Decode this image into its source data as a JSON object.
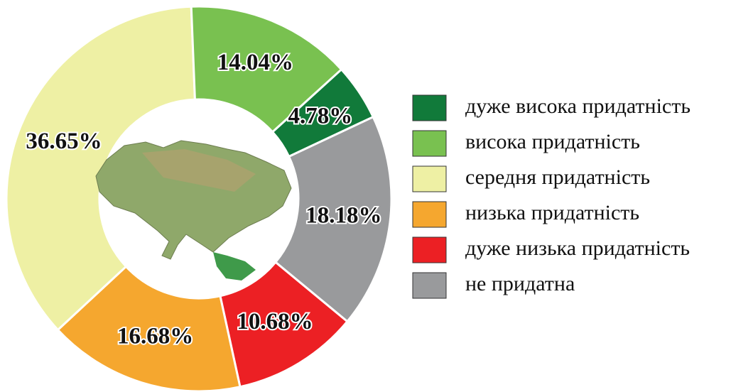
{
  "chart_data": {
    "type": "donut",
    "categories": [
      "дуже висока придатність",
      "висока придатність",
      "середня придатність",
      "низька придатність",
      "дуже низька придатність",
      "не придатна"
    ],
    "values": [
      4.78,
      14.04,
      36.65,
      16.68,
      10.68,
      18.18
    ],
    "value_labels": [
      "4.78%",
      "14.04%",
      "36.65%",
      "16.68%",
      "10.68%",
      "18.18%"
    ],
    "colors": [
      "#117a3a",
      "#79c150",
      "#eef0a4",
      "#f5a72f",
      "#ec2024",
      "#999a9c"
    ],
    "direction": "counterclockwise",
    "legend": "right"
  }
}
